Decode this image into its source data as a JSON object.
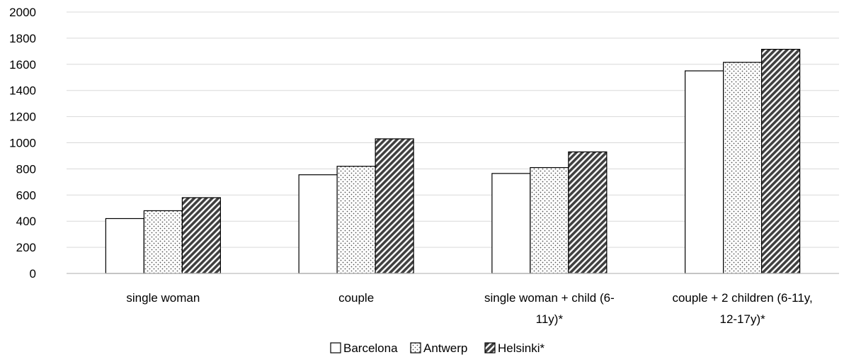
{
  "chart_data": {
    "type": "bar",
    "title": "",
    "xlabel": "",
    "ylabel": "",
    "ylim": [
      0,
      2000
    ],
    "yticks": [
      0,
      200,
      400,
      600,
      800,
      1000,
      1200,
      1400,
      1600,
      1800,
      2000
    ],
    "grid": true,
    "legend_position": "bottom",
    "categories": [
      [
        "single woman"
      ],
      [
        "couple"
      ],
      [
        "single woman + child (6-",
        "11y)*"
      ],
      [
        "couple + 2 children (6-11y,",
        "12-17y)*"
      ]
    ],
    "series": [
      {
        "name": "Barcelona",
        "pattern": "solid-white",
        "values": [
          420,
          755,
          765,
          1550
        ]
      },
      {
        "name": "Antwerp",
        "pattern": "dotted",
        "values": [
          480,
          820,
          810,
          1615
        ]
      },
      {
        "name": "Helsinki*",
        "pattern": "diagonal-hatch",
        "values": [
          580,
          1030,
          930,
          1715
        ]
      }
    ],
    "colors": {
      "bar_outline": "#000000",
      "grid": "#d9d9d9",
      "axis": "#bfbfbf",
      "hatch": "#404040",
      "dots": "#555555"
    }
  }
}
